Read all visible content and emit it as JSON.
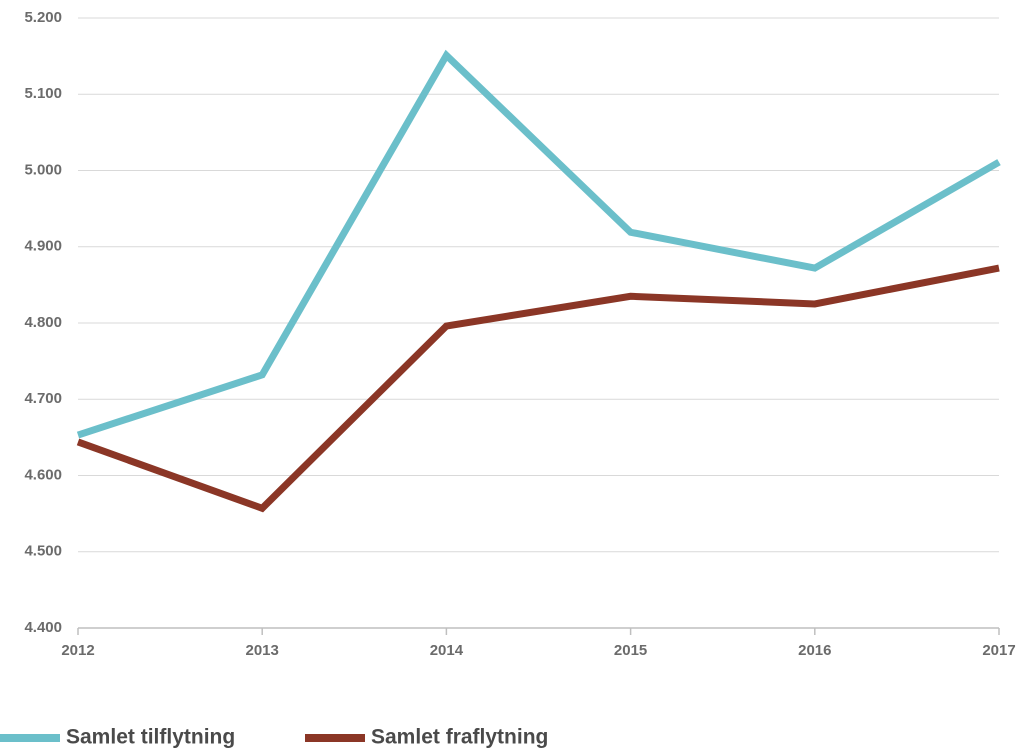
{
  "chart_data": {
    "type": "line",
    "categories": [
      "2012",
      "2013",
      "2014",
      "2015",
      "2016",
      "2017"
    ],
    "series": [
      {
        "name": "Samlet tilflytning",
        "color": "#6bbfca",
        "values": [
          4653,
          4732,
          5151,
          4919,
          4872,
          5011
        ]
      },
      {
        "name": "Samlet fraflytning",
        "color": "#8b3626",
        "values": [
          4644,
          4557,
          4796,
          4835,
          4825,
          4872
        ]
      }
    ],
    "ylim": [
      4400,
      5200
    ],
    "yticks": [
      {
        "value": 4400,
        "label": "4.400"
      },
      {
        "value": 4500,
        "label": "4.500"
      },
      {
        "value": 4600,
        "label": "4.600"
      },
      {
        "value": 4700,
        "label": "4.700"
      },
      {
        "value": 4800,
        "label": "4.800"
      },
      {
        "value": 4900,
        "label": "4.900"
      },
      {
        "value": 5000,
        "label": "5.000"
      },
      {
        "value": 5100,
        "label": "5.100"
      },
      {
        "value": 5200,
        "label": "5.200"
      }
    ],
    "grid": true,
    "legend": "bottom-left"
  }
}
